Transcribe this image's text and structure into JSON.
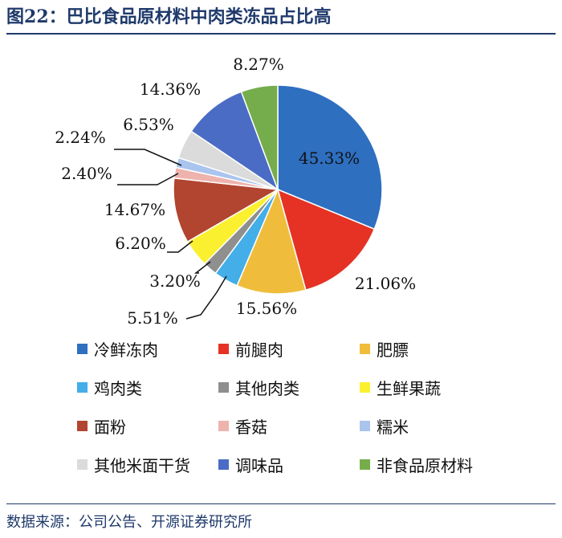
{
  "figure": {
    "title_prefix": "图",
    "title_number": "22",
    "title_text": "：巴比食品原材料中肉类冻品占比高",
    "source": "数据来源：公司公告、开源证券研究所"
  },
  "chart_data": {
    "type": "pie",
    "slices": [
      {
        "name": "冷鲜冻肉",
        "value": 45.33,
        "label": "45.33%",
        "color": "#2e6fc0"
      },
      {
        "name": "前腿肉",
        "value": 21.06,
        "label": "21.06%",
        "color": "#e53224"
      },
      {
        "name": "肥膘",
        "value": 15.56,
        "label": "15.56%",
        "color": "#efbd3b"
      },
      {
        "name": "鸡肉类",
        "value": 5.51,
        "label": "5.51%",
        "color": "#43aee8"
      },
      {
        "name": "其他肉类",
        "value": 3.2,
        "label": "3.20%",
        "color": "#8f8f8f"
      },
      {
        "name": "生鲜果蔬",
        "value": 6.2,
        "label": "6.20%",
        "color": "#fbf030"
      },
      {
        "name": "面粉",
        "value": 14.67,
        "label": "14.67%",
        "color": "#b14530"
      },
      {
        "name": "香菇",
        "value": 2.4,
        "label": "2.40%",
        "color": "#eeb3ad"
      },
      {
        "name": "糯米",
        "value": 2.24,
        "label": "2.24%",
        "color": "#a9c4ed"
      },
      {
        "name": "其他米面干货",
        "value": 6.53,
        "label": "6.53%",
        "color": "#dbdbdb"
      },
      {
        "name": "调味品",
        "value": 14.36,
        "label": "14.36%",
        "color": "#4a6cc4"
      },
      {
        "name": "非食品原材料",
        "value": 8.27,
        "label": "8.27%",
        "color": "#76ad4c"
      }
    ],
    "legend_position": "bottom",
    "start_angle": "12 o'clock",
    "direction": "clockwise"
  }
}
